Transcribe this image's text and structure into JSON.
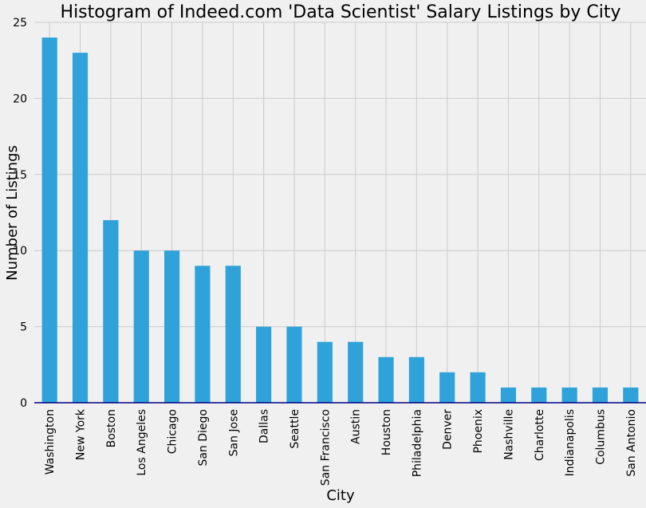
{
  "chart_data": {
    "type": "bar",
    "title": "Histogram of Indeed.com 'Data Scientist' Salary Listings by City",
    "xlabel": "City",
    "ylabel": "Number of Listings",
    "categories": [
      "Washington",
      "New York",
      "Boston",
      "Los Angeles",
      "Chicago",
      "San Diego",
      "San Jose",
      "Dallas",
      "Seattle",
      "San Francisco",
      "Austin",
      "Houston",
      "Philadelphia",
      "Denver",
      "Phoenix",
      "Nashville",
      "Charlotte",
      "Indianapolis",
      "Columbus",
      "San Antonio"
    ],
    "values": [
      24,
      23,
      12,
      10,
      10,
      9,
      9,
      5,
      5,
      4,
      4,
      3,
      3,
      2,
      2,
      1,
      1,
      1,
      1,
      1
    ],
    "ylim": [
      0,
      25
    ],
    "yticks": [
      0,
      5,
      10,
      15,
      20,
      25
    ],
    "grid": true,
    "legend": "none",
    "bar_color": "#30a2da",
    "background_color": "#f0f0f0",
    "grid_color": "#cbcbcb",
    "baseline_color": "#000080"
  }
}
